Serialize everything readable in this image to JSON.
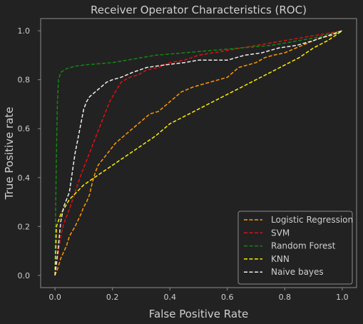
{
  "chart_data": {
    "type": "line",
    "title": "Receiver Operator Characteristics (ROC)",
    "xlabel": "False Positive Rate",
    "ylabel": "True Positive rate",
    "xlim": [
      -0.05,
      1.05
    ],
    "ylim": [
      -0.05,
      1.05
    ],
    "x_ticks": [
      "0.0",
      "0.2",
      "0.4",
      "0.6",
      "0.8",
      "1.0"
    ],
    "y_ticks": [
      "0.0",
      "0.2",
      "0.4",
      "0.6",
      "0.8",
      "1.0"
    ],
    "grid": false,
    "legend_position": "lower right",
    "line_style": "dashed",
    "background": "#222222",
    "series": [
      {
        "name": "Logistic Regression",
        "color": "#ff9900",
        "points": [
          [
            0,
            0
          ],
          [
            0.01,
            0.03
          ],
          [
            0.02,
            0.07
          ],
          [
            0.04,
            0.12
          ],
          [
            0.05,
            0.16
          ],
          [
            0.07,
            0.2
          ],
          [
            0.09,
            0.25
          ],
          [
            0.1,
            0.28
          ],
          [
            0.11,
            0.3
          ],
          [
            0.12,
            0.33
          ],
          [
            0.13,
            0.38
          ],
          [
            0.14,
            0.42
          ],
          [
            0.15,
            0.45
          ],
          [
            0.17,
            0.48
          ],
          [
            0.19,
            0.51
          ],
          [
            0.21,
            0.54
          ],
          [
            0.23,
            0.56
          ],
          [
            0.25,
            0.58
          ],
          [
            0.27,
            0.6
          ],
          [
            0.29,
            0.62
          ],
          [
            0.31,
            0.64
          ],
          [
            0.33,
            0.66
          ],
          [
            0.36,
            0.67
          ],
          [
            0.38,
            0.69
          ],
          [
            0.4,
            0.71
          ],
          [
            0.42,
            0.73
          ],
          [
            0.44,
            0.75
          ],
          [
            0.46,
            0.76
          ],
          [
            0.48,
            0.77
          ],
          [
            0.51,
            0.78
          ],
          [
            0.54,
            0.79
          ],
          [
            0.57,
            0.8
          ],
          [
            0.6,
            0.81
          ],
          [
            0.62,
            0.83
          ],
          [
            0.64,
            0.85
          ],
          [
            0.67,
            0.86
          ],
          [
            0.7,
            0.87
          ],
          [
            0.73,
            0.89
          ],
          [
            0.76,
            0.9
          ],
          [
            0.8,
            0.91
          ],
          [
            0.84,
            0.93
          ],
          [
            0.88,
            0.95
          ],
          [
            0.92,
            0.97
          ],
          [
            0.96,
            0.98
          ],
          [
            1,
            1
          ]
        ]
      },
      {
        "name": "SVM",
        "color": "#dd1111",
        "points": [
          [
            0,
            0
          ],
          [
            0.01,
            0.08
          ],
          [
            0.02,
            0.16
          ],
          [
            0.03,
            0.21
          ],
          [
            0.05,
            0.27
          ],
          [
            0.07,
            0.34
          ],
          [
            0.09,
            0.41
          ],
          [
            0.11,
            0.47
          ],
          [
            0.13,
            0.53
          ],
          [
            0.15,
            0.59
          ],
          [
            0.17,
            0.65
          ],
          [
            0.19,
            0.71
          ],
          [
            0.21,
            0.75
          ],
          [
            0.23,
            0.79
          ],
          [
            0.26,
            0.81
          ],
          [
            0.29,
            0.82
          ],
          [
            0.32,
            0.84
          ],
          [
            0.36,
            0.85
          ],
          [
            0.4,
            0.87
          ],
          [
            0.45,
            0.88
          ],
          [
            0.5,
            0.9
          ],
          [
            0.55,
            0.91
          ],
          [
            0.6,
            0.92
          ],
          [
            0.65,
            0.93
          ],
          [
            0.7,
            0.94
          ],
          [
            0.75,
            0.95
          ],
          [
            0.8,
            0.96
          ],
          [
            0.85,
            0.97
          ],
          [
            0.9,
            0.98
          ],
          [
            0.95,
            0.99
          ],
          [
            1,
            1
          ]
        ]
      },
      {
        "name": "Random Forest",
        "color": "#118811",
        "points": [
          [
            0,
            0
          ],
          [
            0.002,
            0.25
          ],
          [
            0.005,
            0.5
          ],
          [
            0.008,
            0.7
          ],
          [
            0.012,
            0.8
          ],
          [
            0.02,
            0.83
          ],
          [
            0.04,
            0.845
          ],
          [
            0.07,
            0.855
          ],
          [
            0.1,
            0.86
          ],
          [
            0.15,
            0.865
          ],
          [
            0.2,
            0.87
          ],
          [
            0.25,
            0.88
          ],
          [
            0.3,
            0.89
          ],
          [
            0.35,
            0.9
          ],
          [
            0.4,
            0.905
          ],
          [
            0.45,
            0.91
          ],
          [
            0.5,
            0.915
          ],
          [
            0.55,
            0.92
          ],
          [
            0.6,
            0.925
          ],
          [
            0.65,
            0.93
          ],
          [
            0.7,
            0.935
          ],
          [
            0.75,
            0.94
          ],
          [
            0.8,
            0.95
          ],
          [
            0.85,
            0.96
          ],
          [
            0.9,
            0.97
          ],
          [
            0.95,
            0.985
          ],
          [
            1,
            1
          ]
        ]
      },
      {
        "name": "KNN",
        "color": "#ffee00",
        "points": [
          [
            0,
            0
          ],
          [
            0.005,
            0.2
          ],
          [
            0.02,
            0.25
          ],
          [
            0.05,
            0.31
          ],
          [
            0.1,
            0.37
          ],
          [
            0.15,
            0.41
          ],
          [
            0.2,
            0.45
          ],
          [
            0.25,
            0.49
          ],
          [
            0.3,
            0.53
          ],
          [
            0.35,
            0.57
          ],
          [
            0.4,
            0.62
          ],
          [
            0.45,
            0.65
          ],
          [
            0.5,
            0.68
          ],
          [
            0.55,
            0.71
          ],
          [
            0.6,
            0.74
          ],
          [
            0.65,
            0.77
          ],
          [
            0.7,
            0.8
          ],
          [
            0.75,
            0.83
          ],
          [
            0.8,
            0.86
          ],
          [
            0.85,
            0.89
          ],
          [
            0.9,
            0.93
          ],
          [
            0.95,
            0.96
          ],
          [
            1,
            1
          ]
        ]
      },
      {
        "name": "Naive bayes",
        "color": "#eeeeee",
        "points": [
          [
            0,
            0
          ],
          [
            0.01,
            0.1
          ],
          [
            0.02,
            0.22
          ],
          [
            0.03,
            0.28
          ],
          [
            0.05,
            0.34
          ],
          [
            0.06,
            0.42
          ],
          [
            0.07,
            0.5
          ],
          [
            0.08,
            0.56
          ],
          [
            0.09,
            0.62
          ],
          [
            0.1,
            0.68
          ],
          [
            0.11,
            0.71
          ],
          [
            0.12,
            0.73
          ],
          [
            0.14,
            0.75
          ],
          [
            0.16,
            0.77
          ],
          [
            0.18,
            0.79
          ],
          [
            0.2,
            0.8
          ],
          [
            0.23,
            0.81
          ],
          [
            0.27,
            0.83
          ],
          [
            0.32,
            0.85
          ],
          [
            0.38,
            0.86
          ],
          [
            0.45,
            0.87
          ],
          [
            0.5,
            0.88
          ],
          [
            0.55,
            0.88
          ],
          [
            0.6,
            0.88
          ],
          [
            0.66,
            0.9
          ],
          [
            0.72,
            0.91
          ],
          [
            0.78,
            0.93
          ],
          [
            0.84,
            0.94
          ],
          [
            0.9,
            0.96
          ],
          [
            0.95,
            0.98
          ],
          [
            1,
            1
          ]
        ]
      }
    ]
  }
}
